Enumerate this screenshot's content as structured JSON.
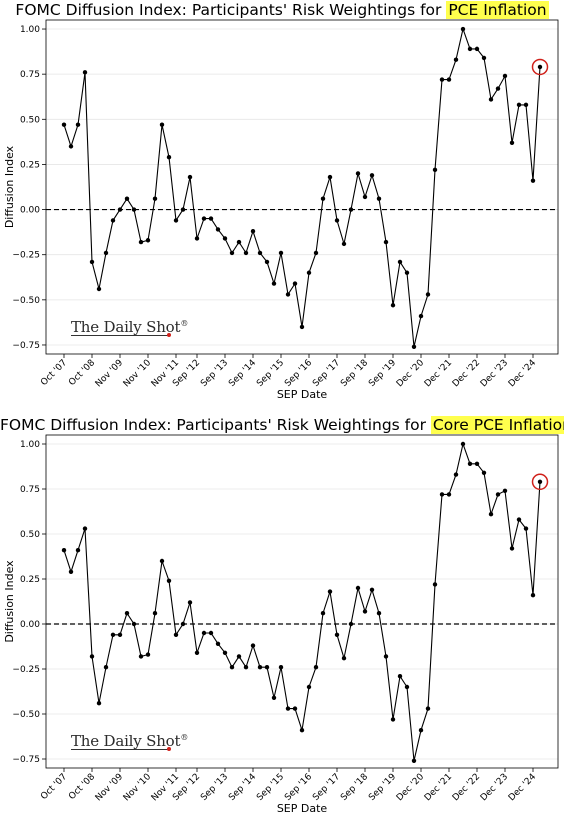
{
  "brand": {
    "name": "The Daily Shot",
    "mark": "®"
  },
  "chart_data": [
    {
      "type": "line",
      "title_prefix": "FOMC Diffusion Index: Participants' Risk Weightings for ",
      "title_highlight": "PCE Inflation",
      "xlabel": "SEP Date",
      "ylabel": "Diffusion Index",
      "ylim": [
        -0.8,
        1.05
      ],
      "yticks": [
        1.0,
        0.75,
        0.5,
        0.25,
        0.0,
        -0.25,
        -0.5,
        -0.75
      ],
      "ytick_labels": [
        "1.00",
        "0.75",
        "0.50",
        "0.25",
        "0.00",
        "−0.25",
        "−0.50",
        "−0.75"
      ],
      "xticks": [
        {
          "label": "Oct '07",
          "index": 0
        },
        {
          "label": "Oct '08",
          "index": 4
        },
        {
          "label": "Nov '09",
          "index": 8
        },
        {
          "label": "Nov '10",
          "index": 12
        },
        {
          "label": "Nov '11",
          "index": 16
        },
        {
          "label": "Sep '12",
          "index": 19
        },
        {
          "label": "Sep '13",
          "index": 23
        },
        {
          "label": "Sep '14",
          "index": 27
        },
        {
          "label": "Sep '15",
          "index": 31
        },
        {
          "label": "Sep '16",
          "index": 35
        },
        {
          "label": "Sep '17",
          "index": 39
        },
        {
          "label": "Sep '18",
          "index": 43
        },
        {
          "label": "Sep '19",
          "index": 47
        },
        {
          "label": "Dec '20",
          "index": 51
        },
        {
          "label": "Dec '21",
          "index": 55
        },
        {
          "label": "Dec '22",
          "index": 59
        },
        {
          "label": "Dec '23",
          "index": 63
        },
        {
          "label": "Dec '24",
          "index": 67
        }
      ],
      "reference_line": 0,
      "grid": "horizontal",
      "circled_last_point": true,
      "values": [
        0.47,
        0.35,
        0.47,
        0.76,
        -0.29,
        -0.44,
        -0.24,
        -0.06,
        0.0,
        0.06,
        0.0,
        -0.18,
        -0.17,
        0.06,
        0.47,
        0.29,
        -0.06,
        0.0,
        0.18,
        -0.16,
        -0.05,
        -0.05,
        -0.11,
        -0.16,
        -0.24,
        -0.18,
        -0.24,
        -0.12,
        -0.24,
        -0.29,
        -0.41,
        -0.24,
        -0.47,
        -0.41,
        -0.65,
        -0.35,
        -0.24,
        0.06,
        0.18,
        -0.06,
        -0.19,
        0.0,
        0.2,
        0.07,
        0.19,
        0.06,
        -0.18,
        -0.53,
        -0.29,
        -0.35,
        -0.76,
        -0.59,
        -0.47,
        0.22,
        0.72,
        0.72,
        0.83,
        1.0,
        0.89,
        0.89,
        0.84,
        0.61,
        0.67,
        0.74,
        0.37,
        0.58,
        0.58,
        0.16,
        0.79
      ]
    },
    {
      "type": "line",
      "title_prefix": "FOMC Diffusion Index: Participants' Risk Weightings for ",
      "title_highlight": "Core PCE Inflation",
      "xlabel": "SEP Date",
      "ylabel": "Diffusion Index",
      "ylim": [
        -0.8,
        1.05
      ],
      "yticks": [
        1.0,
        0.75,
        0.5,
        0.25,
        0.0,
        -0.25,
        -0.5,
        -0.75
      ],
      "ytick_labels": [
        "1.00",
        "0.75",
        "0.50",
        "0.25",
        "0.00",
        "−0.25",
        "−0.50",
        "−0.75"
      ],
      "xticks": [
        {
          "label": "Oct '07",
          "index": 0
        },
        {
          "label": "Oct '08",
          "index": 4
        },
        {
          "label": "Nov '09",
          "index": 8
        },
        {
          "label": "Nov '10",
          "index": 12
        },
        {
          "label": "Nov '11",
          "index": 16
        },
        {
          "label": "Sep '12",
          "index": 19
        },
        {
          "label": "Sep '13",
          "index": 23
        },
        {
          "label": "Sep '14",
          "index": 27
        },
        {
          "label": "Sep '15",
          "index": 31
        },
        {
          "label": "Sep '16",
          "index": 35
        },
        {
          "label": "Sep '17",
          "index": 39
        },
        {
          "label": "Sep '18",
          "index": 43
        },
        {
          "label": "Sep '19",
          "index": 47
        },
        {
          "label": "Dec '20",
          "index": 51
        },
        {
          "label": "Dec '21",
          "index": 55
        },
        {
          "label": "Dec '22",
          "index": 59
        },
        {
          "label": "Dec '23",
          "index": 63
        },
        {
          "label": "Dec '24",
          "index": 67
        }
      ],
      "reference_line": 0,
      "grid": "horizontal",
      "circled_last_point": true,
      "values": [
        0.41,
        0.29,
        0.41,
        0.53,
        -0.18,
        -0.44,
        -0.24,
        -0.06,
        -0.06,
        0.06,
        0.0,
        -0.18,
        -0.17,
        0.06,
        0.35,
        0.24,
        -0.06,
        0.0,
        0.12,
        -0.16,
        -0.05,
        -0.05,
        -0.11,
        -0.16,
        -0.24,
        -0.18,
        -0.24,
        -0.12,
        -0.24,
        -0.24,
        -0.41,
        -0.24,
        -0.47,
        -0.47,
        -0.59,
        -0.35,
        -0.24,
        0.06,
        0.18,
        -0.06,
        -0.19,
        0.0,
        0.2,
        0.07,
        0.19,
        0.06,
        -0.18,
        -0.53,
        -0.29,
        -0.35,
        -0.76,
        -0.59,
        -0.47,
        0.22,
        0.72,
        0.72,
        0.83,
        1.0,
        0.89,
        0.89,
        0.84,
        0.61,
        0.72,
        0.74,
        0.42,
        0.58,
        0.53,
        0.16,
        0.79
      ]
    }
  ]
}
